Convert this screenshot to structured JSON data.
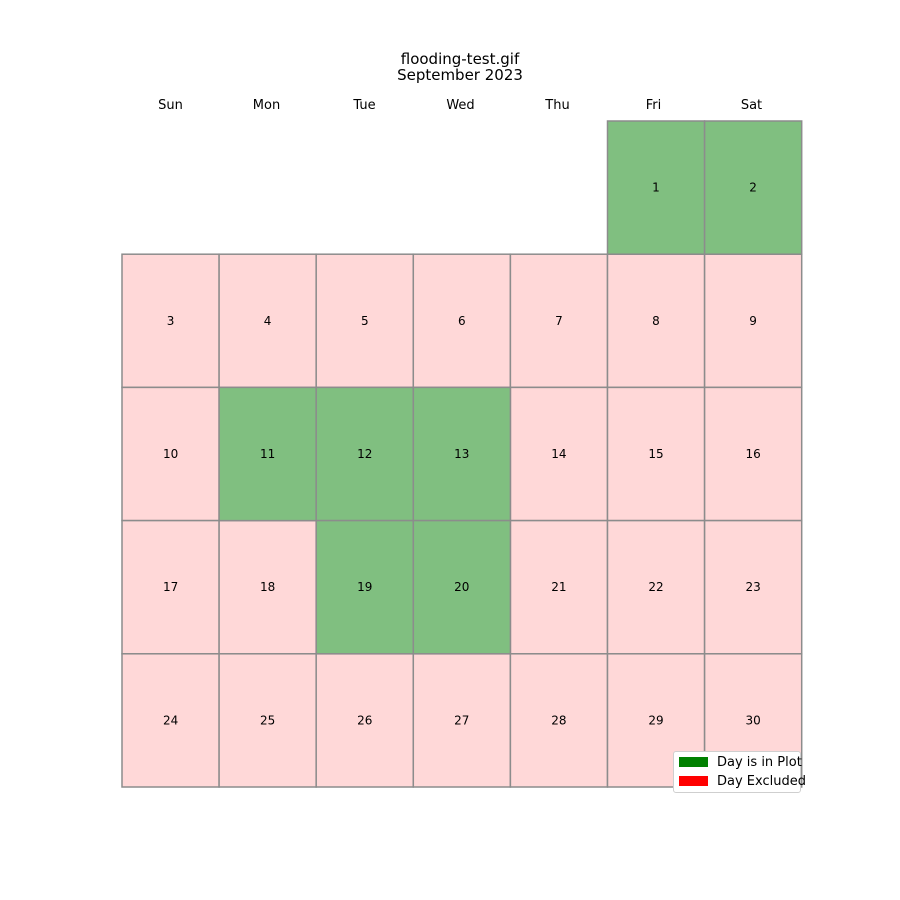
{
  "chart_data": {
    "type": "heatmap",
    "title": "flooding-test.gif",
    "subtitle": "September 2023",
    "weekdays": [
      "Sun",
      "Mon",
      "Tue",
      "Wed",
      "Thu",
      "Fri",
      "Sat"
    ],
    "month_start_weekday": 5,
    "days_in_month": 30,
    "days_in_plot": [
      1,
      2,
      11,
      12,
      13,
      19,
      20
    ],
    "colors": {
      "in_plot_fill": "#80bf80",
      "excluded_fill": "#ffd8d8",
      "border": "#8c8c8c",
      "legend_in_plot": "#008000",
      "legend_excluded": "#ff0000"
    },
    "legend": {
      "position": "lower-right",
      "items": [
        {
          "label": "Day is in Plot",
          "color": "#008000"
        },
        {
          "label": "Day Excluded",
          "color": "#ff0000"
        }
      ]
    }
  }
}
